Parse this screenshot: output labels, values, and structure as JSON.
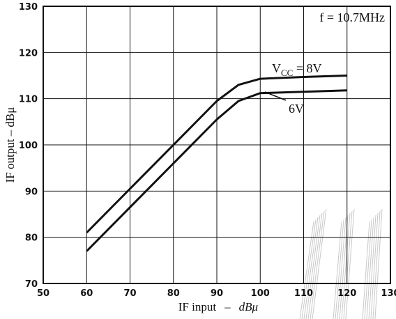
{
  "chart_data": {
    "type": "line",
    "xlabel_main": "IF input",
    "xlabel_dash": "–",
    "xlabel_unit": "dBμ",
    "ylabel": "IF output  –  dBμ",
    "annotation": "f = 10.7MHz",
    "xlim": [
      50,
      130
    ],
    "ylim": [
      70,
      130
    ],
    "x_ticks": [
      50,
      60,
      70,
      80,
      90,
      100,
      110,
      120,
      130
    ],
    "y_ticks": [
      70,
      80,
      90,
      100,
      110,
      120,
      130
    ],
    "grid": true,
    "series": [
      {
        "name_main": "V",
        "name_sub": "CC",
        "name_rest": " = 8V",
        "points": [
          [
            60,
            81
          ],
          [
            70,
            90.5
          ],
          [
            80,
            100
          ],
          [
            90,
            109.5
          ],
          [
            95,
            113
          ],
          [
            100,
            114.3
          ],
          [
            110,
            114.7
          ],
          [
            120,
            115
          ]
        ]
      },
      {
        "name": "6V",
        "points": [
          [
            60,
            77
          ],
          [
            70,
            86.5
          ],
          [
            80,
            96
          ],
          [
            90,
            105.5
          ],
          [
            95,
            109.5
          ],
          [
            100,
            111.2
          ],
          [
            110,
            111.5
          ],
          [
            120,
            111.8
          ]
        ]
      }
    ]
  }
}
